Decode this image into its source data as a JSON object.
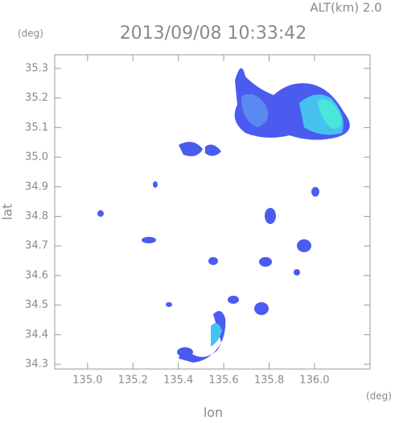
{
  "chart_data": {
    "type": "map",
    "title": "2013/09/08 10:33:42",
    "subtitle": "ALT(km) 2.0",
    "x_label": "lon",
    "y_label": "lat",
    "x_unit": "(deg)",
    "y_unit": "(deg)",
    "xlim": [
      134.855,
      136.245
    ],
    "ylim": [
      34.284,
      35.346
    ],
    "xticks": [
      {
        "value": 135,
        "label": "135.0"
      },
      135.2,
      135.4,
      135.6,
      135.8,
      {
        "value": 136,
        "label": "136.0"
      }
    ],
    "yticks": [
      34.3,
      34.4,
      34.5,
      34.6,
      34.7,
      34.8,
      34.9,
      {
        "value": 35,
        "label": "35.0"
      },
      35.1,
      35.2,
      35.3
    ]
  }
}
